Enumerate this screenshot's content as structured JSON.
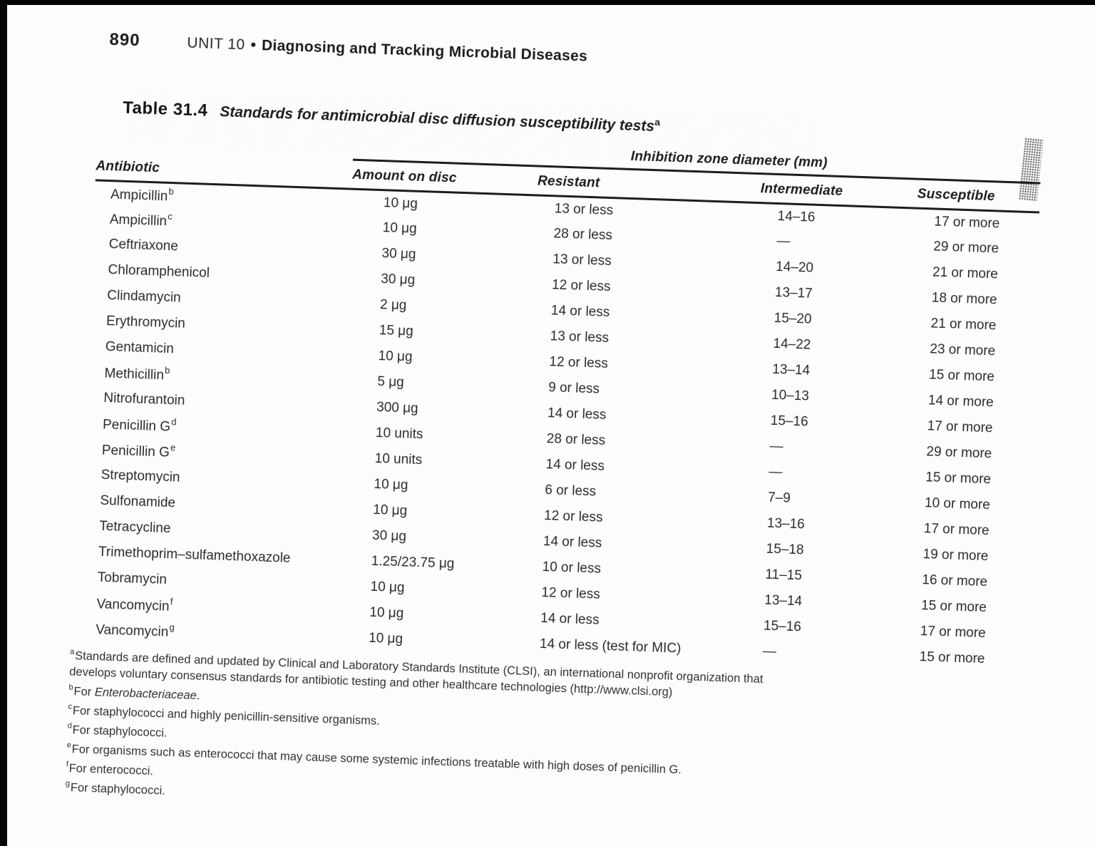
{
  "page": {
    "number": "890",
    "unit_label": "UNIT 10",
    "bullet": "•",
    "unit_title": "Diagnosing and Tracking Microbial Diseases"
  },
  "table": {
    "label": "Table 31.4",
    "title": "Standards for antimicrobial disc diffusion susceptibility tests",
    "title_sup": "a",
    "span_header": "Inhibition zone diameter (mm)",
    "columns": [
      "Antibiotic",
      "Amount on disc",
      "Resistant",
      "Intermediate",
      "Susceptible"
    ],
    "rows": [
      {
        "antibiotic": "Ampicillin",
        "sup": "b",
        "amount": "10 μg",
        "resistant": "13 or less",
        "intermediate": "14–16",
        "susceptible": "17 or more"
      },
      {
        "antibiotic": "Ampicillin",
        "sup": "c",
        "amount": "10 μg",
        "resistant": "28 or less",
        "intermediate": "—",
        "susceptible": "29 or more"
      },
      {
        "antibiotic": "Ceftriaxone",
        "sup": "",
        "amount": "30 μg",
        "resistant": "13 or less",
        "intermediate": "14–20",
        "susceptible": "21 or more"
      },
      {
        "antibiotic": "Chloramphenicol",
        "sup": "",
        "amount": "30 μg",
        "resistant": "12 or less",
        "intermediate": "13–17",
        "susceptible": "18 or more"
      },
      {
        "antibiotic": "Clindamycin",
        "sup": "",
        "amount": "2 μg",
        "resistant": "14 or less",
        "intermediate": "15–20",
        "susceptible": "21 or more"
      },
      {
        "antibiotic": "Erythromycin",
        "sup": "",
        "amount": "15 μg",
        "resistant": "13 or less",
        "intermediate": "14–22",
        "susceptible": "23 or more"
      },
      {
        "antibiotic": "Gentamicin",
        "sup": "",
        "amount": "10 μg",
        "resistant": "12 or less",
        "intermediate": "13–14",
        "susceptible": "15 or more"
      },
      {
        "antibiotic": "Methicillin",
        "sup": "b",
        "amount": "5 μg",
        "resistant": "9 or less",
        "intermediate": "10–13",
        "susceptible": "14 or more"
      },
      {
        "antibiotic": "Nitrofurantoin",
        "sup": "",
        "amount": "300 μg",
        "resistant": "14 or less",
        "intermediate": "15–16",
        "susceptible": "17 or more"
      },
      {
        "antibiotic": "Penicillin G",
        "sup": "d",
        "amount": "10 units",
        "resistant": "28 or less",
        "intermediate": "—",
        "susceptible": "29 or more"
      },
      {
        "antibiotic": "Penicillin G",
        "sup": "e",
        "amount": "10 units",
        "resistant": "14 or less",
        "intermediate": "—",
        "susceptible": "15 or more"
      },
      {
        "antibiotic": "Streptomycin",
        "sup": "",
        "amount": "10 μg",
        "resistant": "6 or less",
        "intermediate": "7–9",
        "susceptible": "10 or more"
      },
      {
        "antibiotic": "Sulfonamide",
        "sup": "",
        "amount": "10 μg",
        "resistant": "12 or less",
        "intermediate": "13–16",
        "susceptible": "17 or more"
      },
      {
        "antibiotic": "Tetracycline",
        "sup": "",
        "amount": "30 μg",
        "resistant": "14 or less",
        "intermediate": "15–18",
        "susceptible": "19 or more"
      },
      {
        "antibiotic": "Trimethoprim–sulfamethoxazole",
        "sup": "",
        "amount": "1.25/23.75 μg",
        "resistant": "10 or less",
        "intermediate": "11–15",
        "susceptible": "16 or more"
      },
      {
        "antibiotic": "Tobramycin",
        "sup": "",
        "amount": "10 μg",
        "resistant": "12 or less",
        "intermediate": "13–14",
        "susceptible": "15 or more"
      },
      {
        "antibiotic": "Vancomycin",
        "sup": "f",
        "amount": "10 μg",
        "resistant": "14 or less",
        "intermediate": "15–16",
        "susceptible": "17 or more"
      },
      {
        "antibiotic": "Vancomycin",
        "sup": "g",
        "amount": "10 μg",
        "resistant": "14 or less (test for MIC)",
        "intermediate": "—",
        "susceptible": "15 or more"
      }
    ]
  },
  "footnotes": [
    {
      "sup": "a",
      "lines": [
        "Standards are defined and updated by Clinical and Laboratory Standards Institute (CLSI), an international nonprofit organization that",
        "develops voluntary consensus standards for antibiotic testing and other healthcare technologies (http://www.clsi.org)"
      ]
    },
    {
      "sup": "b",
      "pre": "For ",
      "em": "Enterobacteriaceae",
      "post": "."
    },
    {
      "sup": "c",
      "text": "For staphylococci and highly penicillin-sensitive organisms."
    },
    {
      "sup": "d",
      "text": "For staphylococci."
    },
    {
      "sup": "e",
      "text": "For organisms such as enterococci that may cause some systemic infections treatable with high doses of penicillin G."
    },
    {
      "sup": "f",
      "text": "For enterococci."
    },
    {
      "sup": "g",
      "text": "For staphylococci."
    }
  ]
}
